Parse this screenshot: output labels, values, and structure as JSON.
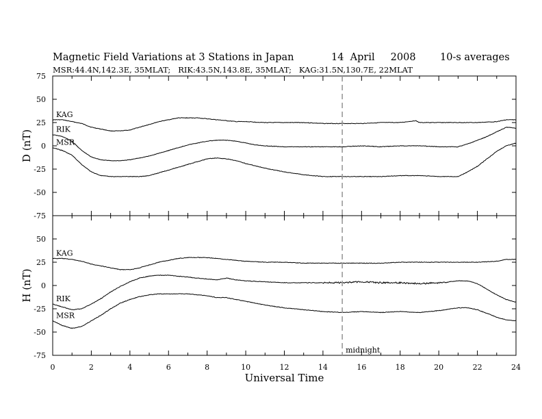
{
  "header": {
    "title": "Magnetic Field Variations at 3 Stations in Japan",
    "date": "14  April     2008",
    "averaging": "10-s averages",
    "stations_line": "MSR:44.4N,142.3E, 35MLAT;   RIK:43.5N,143.8E, 35MLAT;   KAG:31.5N,130.7E, 22MLAT"
  },
  "chart_data": [
    {
      "type": "line",
      "panel": "D",
      "ylabel": "D (nT)",
      "ylim": [
        -75,
        75
      ],
      "yticks": [
        75,
        50,
        25,
        0,
        -25,
        -50,
        -75
      ],
      "xlim": [
        0,
        24
      ],
      "series": [
        {
          "name": "KAG",
          "x": [
            0,
            0.5,
            1,
            1.5,
            2,
            2.5,
            3,
            3.5,
            4,
            4.5,
            5,
            5.5,
            6,
            6.5,
            7,
            7.5,
            8,
            8.5,
            9,
            9.5,
            10,
            11,
            12,
            13,
            14,
            15,
            16,
            17,
            18,
            18.8,
            19,
            20,
            21,
            22,
            23,
            23.5,
            24
          ],
          "y": [
            28,
            28,
            26,
            24,
            20,
            18,
            16,
            16,
            17,
            20,
            23,
            26,
            28,
            30,
            30,
            30,
            29,
            28,
            27,
            26,
            26,
            25,
            25,
            25,
            24,
            24,
            24,
            25,
            25,
            27,
            25,
            25,
            25,
            25,
            26,
            28,
            28
          ]
        },
        {
          "name": "RIK",
          "x": [
            0,
            0.5,
            1,
            1.5,
            2,
            2.5,
            3,
            3.5,
            4,
            4.5,
            5,
            5.5,
            6,
            6.5,
            7,
            7.5,
            8,
            8.5,
            9,
            9.5,
            10,
            10.5,
            11,
            12,
            13,
            14,
            15,
            16,
            17,
            18,
            19,
            20,
            21,
            21.5,
            22,
            22.5,
            23,
            23.5,
            24
          ],
          "y": [
            12,
            10,
            5,
            -5,
            -12,
            -15,
            -16,
            -16,
            -15,
            -13,
            -11,
            -8,
            -5,
            -2,
            1,
            3,
            5,
            6,
            6,
            5,
            3,
            1,
            0,
            -1,
            -1,
            -1,
            -1,
            0,
            -1,
            0,
            0,
            -1,
            -1,
            2,
            6,
            10,
            15,
            20,
            19
          ]
        },
        {
          "name": "MSR",
          "x": [
            0,
            0.5,
            1,
            1.5,
            2,
            2.5,
            3,
            3.5,
            4,
            4.5,
            5,
            5.5,
            6,
            6.5,
            7,
            7.5,
            8,
            8.5,
            9,
            9.5,
            10,
            11,
            12,
            13,
            14,
            15,
            16,
            17,
            18,
            19,
            20,
            21,
            21.5,
            22,
            22.5,
            23,
            23.5,
            24
          ],
          "y": [
            -2,
            -5,
            -10,
            -20,
            -28,
            -32,
            -33,
            -33,
            -33,
            -33,
            -32,
            -29,
            -26,
            -23,
            -20,
            -17,
            -14,
            -13,
            -14,
            -16,
            -19,
            -24,
            -28,
            -31,
            -33,
            -33,
            -33,
            -33,
            -32,
            -32,
            -33,
            -33,
            -28,
            -22,
            -14,
            -6,
            0,
            3
          ]
        }
      ]
    },
    {
      "type": "line",
      "panel": "H",
      "ylabel": "H (nT)",
      "ylim": [
        -75,
        75
      ],
      "yticks": [
        50,
        25,
        0,
        -25,
        -50,
        -75
      ],
      "xlim": [
        0,
        24
      ],
      "xticks": [
        0,
        2,
        4,
        6,
        8,
        10,
        12,
        14,
        16,
        18,
        20,
        22,
        24
      ],
      "xlabel": "Universal Time",
      "series": [
        {
          "name": "KAG",
          "x": [
            0,
            0.5,
            1,
            1.5,
            2,
            2.5,
            3,
            3.5,
            4,
            4.5,
            5,
            5.5,
            6,
            6.5,
            7,
            7.5,
            8,
            8.5,
            9,
            9.5,
            10,
            11,
            12,
            13,
            14,
            15,
            16,
            17,
            18,
            19,
            20,
            21,
            22,
            23,
            23.5,
            24
          ],
          "y": [
            29,
            29,
            28,
            26,
            23,
            21,
            19,
            17,
            17,
            19,
            22,
            25,
            27,
            29,
            30,
            30,
            30,
            29,
            28,
            27,
            26,
            25,
            25,
            24,
            24,
            24,
            24,
            24,
            25,
            25,
            25,
            25,
            25,
            26,
            28,
            28
          ]
        },
        {
          "name": "RIK",
          "x": [
            0,
            0.5,
            1,
            1.5,
            2,
            2.5,
            3,
            3.5,
            4,
            4.5,
            5,
            5.5,
            6,
            6.5,
            7,
            7.5,
            8,
            8.5,
            9,
            9.5,
            10,
            11,
            12,
            13,
            14,
            15,
            16,
            17,
            18,
            19,
            20,
            20.5,
            21,
            21.5,
            22,
            22.5,
            23,
            23.5,
            24
          ],
          "y": [
            -20,
            -23,
            -26,
            -25,
            -20,
            -14,
            -7,
            -1,
            4,
            8,
            10,
            11,
            11,
            10,
            9,
            8,
            7,
            6,
            8,
            6,
            5,
            4,
            3,
            3,
            3,
            3,
            4,
            3,
            3,
            2,
            3,
            4,
            5,
            5,
            2,
            -4,
            -10,
            -15,
            -18
          ]
        },
        {
          "name": "MSR",
          "x": [
            0,
            0.5,
            1,
            1.5,
            2,
            2.5,
            3,
            3.5,
            4,
            4.5,
            5,
            5.5,
            6,
            6.5,
            7,
            7.5,
            8,
            8.5,
            9,
            9.5,
            10,
            11,
            12,
            13,
            14,
            15,
            16,
            17,
            18,
            19,
            20,
            21,
            21.5,
            22,
            22.5,
            23,
            23.5,
            24
          ],
          "y": [
            -38,
            -43,
            -46,
            -44,
            -38,
            -32,
            -25,
            -19,
            -15,
            -12,
            -10,
            -9,
            -9,
            -9,
            -9,
            -10,
            -11,
            -13,
            -13,
            -15,
            -17,
            -21,
            -24,
            -26,
            -28,
            -29,
            -28,
            -29,
            -28,
            -29,
            -27,
            -24,
            -24,
            -26,
            -30,
            -34,
            -37,
            -38
          ]
        }
      ]
    }
  ],
  "annotations": {
    "midnight_label": "midnight",
    "midnight_x": 15
  }
}
